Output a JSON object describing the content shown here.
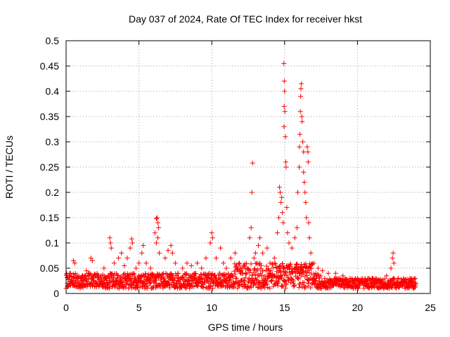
{
  "chart_data": {
    "type": "scatter",
    "title": "Day 037 of 2024, Rate Of TEC Index for receiver hkst",
    "xlabel": "GPS time / hours",
    "ylabel": "ROTI / TECUs",
    "xlim": [
      0,
      25
    ],
    "ylim": [
      0,
      0.5
    ],
    "xticks": [
      0,
      5,
      10,
      15,
      20,
      25
    ],
    "yticks": [
      0,
      0.05,
      0.1,
      0.15,
      0.2,
      0.25,
      0.3,
      0.35,
      0.4,
      0.45,
      0.5
    ],
    "grid": true,
    "marker": "+",
    "marker_color": "#ff0000",
    "baseline_samples": {
      "x_range": [
        0,
        24
      ],
      "typical_min": 0.01,
      "typical_max": 0.04
    },
    "series": [
      {
        "name": "ROTI",
        "points": [
          [
            0.1,
            0.02
          ],
          [
            0.3,
            0.04
          ],
          [
            0.5,
            0.065
          ],
          [
            0.6,
            0.06
          ],
          [
            1.0,
            0.03
          ],
          [
            1.4,
            0.045
          ],
          [
            1.7,
            0.07
          ],
          [
            1.8,
            0.065
          ],
          [
            2.2,
            0.035
          ],
          [
            2.6,
            0.05
          ],
          [
            3.0,
            0.11
          ],
          [
            3.05,
            0.1
          ],
          [
            3.1,
            0.09
          ],
          [
            3.3,
            0.06
          ],
          [
            3.6,
            0.07
          ],
          [
            3.8,
            0.08
          ],
          [
            4.0,
            0.055
          ],
          [
            4.2,
            0.07
          ],
          [
            4.4,
            0.09
          ],
          [
            4.5,
            0.108
          ],
          [
            4.55,
            0.1
          ],
          [
            4.8,
            0.05
          ],
          [
            5.0,
            0.06
          ],
          [
            5.2,
            0.08
          ],
          [
            5.3,
            0.095
          ],
          [
            5.5,
            0.06
          ],
          [
            5.8,
            0.05
          ],
          [
            6.1,
            0.12
          ],
          [
            6.2,
            0.148
          ],
          [
            6.25,
            0.15
          ],
          [
            6.3,
            0.14
          ],
          [
            6.35,
            0.13
          ],
          [
            6.3,
            0.11
          ],
          [
            6.2,
            0.1
          ],
          [
            6.4,
            0.08
          ],
          [
            6.8,
            0.07
          ],
          [
            7.0,
            0.085
          ],
          [
            7.2,
            0.095
          ],
          [
            7.3,
            0.08
          ],
          [
            7.5,
            0.06
          ],
          [
            8.0,
            0.05
          ],
          [
            8.3,
            0.06
          ],
          [
            8.6,
            0.055
          ],
          [
            9.0,
            0.06
          ],
          [
            9.3,
            0.05
          ],
          [
            9.6,
            0.07
          ],
          [
            9.9,
            0.1
          ],
          [
            10.0,
            0.12
          ],
          [
            10.05,
            0.11
          ],
          [
            10.3,
            0.07
          ],
          [
            10.6,
            0.09
          ],
          [
            10.8,
            0.06
          ],
          [
            11.0,
            0.05
          ],
          [
            11.3,
            0.07
          ],
          [
            11.6,
            0.08
          ],
          [
            11.9,
            0.06
          ],
          [
            12.3,
            0.05
          ],
          [
            12.6,
            0.11
          ],
          [
            12.7,
            0.13
          ],
          [
            12.75,
            0.2
          ],
          [
            12.8,
            0.258
          ],
          [
            12.9,
            0.07
          ],
          [
            13.0,
            0.08
          ],
          [
            13.2,
            0.095
          ],
          [
            13.3,
            0.11
          ],
          [
            13.5,
            0.08
          ],
          [
            13.8,
            0.09
          ],
          [
            14.0,
            0.06
          ],
          [
            14.3,
            0.07
          ],
          [
            14.5,
            0.12
          ],
          [
            14.6,
            0.15
          ],
          [
            14.65,
            0.21
          ],
          [
            14.7,
            0.2
          ],
          [
            14.75,
            0.18
          ],
          [
            14.8,
            0.19
          ],
          [
            14.85,
            0.16
          ],
          [
            14.9,
            0.14
          ],
          [
            14.95,
            0.455
          ],
          [
            14.98,
            0.42
          ],
          [
            15.0,
            0.4
          ],
          [
            14.97,
            0.37
          ],
          [
            15.02,
            0.36
          ],
          [
            14.96,
            0.33
          ],
          [
            15.05,
            0.31
          ],
          [
            15.08,
            0.26
          ],
          [
            15.1,
            0.25
          ],
          [
            15.15,
            0.17
          ],
          [
            15.2,
            0.12
          ],
          [
            15.3,
            0.1
          ],
          [
            15.5,
            0.09
          ],
          [
            15.7,
            0.11
          ],
          [
            15.85,
            0.13
          ],
          [
            15.9,
            0.2
          ],
          [
            16.0,
            0.25
          ],
          [
            16.02,
            0.29
          ],
          [
            16.05,
            0.315
          ],
          [
            16.08,
            0.36
          ],
          [
            16.1,
            0.39
          ],
          [
            16.12,
            0.405
          ],
          [
            16.15,
            0.415
          ],
          [
            16.18,
            0.35
          ],
          [
            16.2,
            0.34
          ],
          [
            16.25,
            0.3
          ],
          [
            16.3,
            0.28
          ],
          [
            16.3,
            0.24
          ],
          [
            16.35,
            0.22
          ],
          [
            16.4,
            0.2
          ],
          [
            16.45,
            0.18
          ],
          [
            16.5,
            0.15
          ],
          [
            16.55,
            0.29
          ],
          [
            16.6,
            0.28
          ],
          [
            16.62,
            0.26
          ],
          [
            16.65,
            0.14
          ],
          [
            16.7,
            0.11
          ],
          [
            16.8,
            0.08
          ],
          [
            17.0,
            0.06
          ],
          [
            17.3,
            0.05
          ],
          [
            17.6,
            0.045
          ],
          [
            18.0,
            0.04
          ],
          [
            18.5,
            0.04
          ],
          [
            19.0,
            0.035
          ],
          [
            19.5,
            0.03
          ],
          [
            20.0,
            0.03
          ],
          [
            20.5,
            0.025
          ],
          [
            21.0,
            0.03
          ],
          [
            21.5,
            0.025
          ],
          [
            22.0,
            0.035
          ],
          [
            22.3,
            0.05
          ],
          [
            22.4,
            0.07
          ],
          [
            22.45,
            0.08
          ],
          [
            22.5,
            0.06
          ],
          [
            22.8,
            0.03
          ],
          [
            23.2,
            0.025
          ],
          [
            23.6,
            0.03
          ],
          [
            24.0,
            0.02
          ]
        ]
      }
    ]
  }
}
